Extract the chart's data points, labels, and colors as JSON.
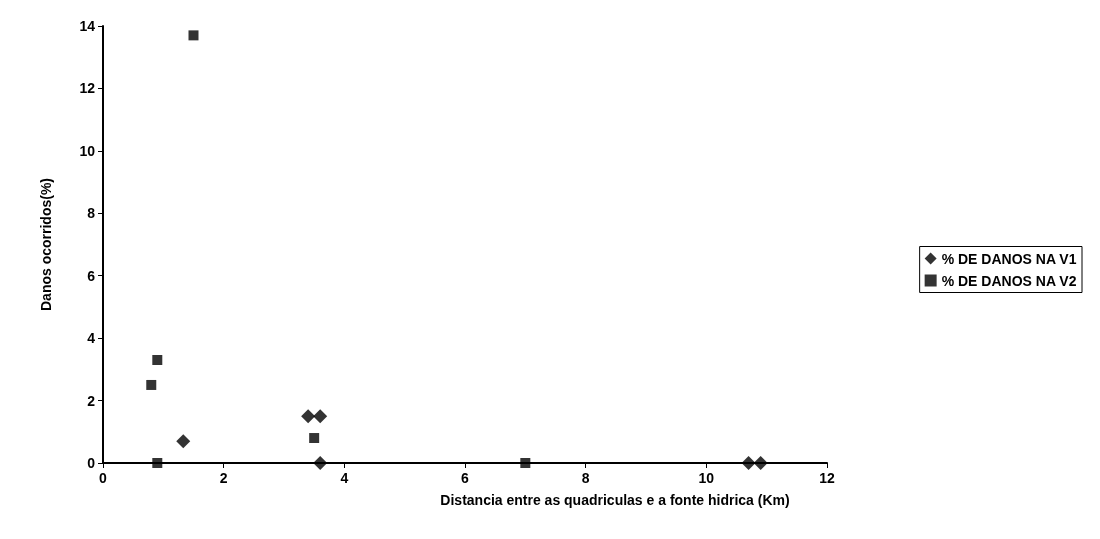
{
  "chart_data": {
    "type": "scatter",
    "xlabel": "Distancia entre as quadriculas e a fonte hidrica (Km)",
    "ylabel": "Danos ocorridos(%)",
    "xlim": [
      0,
      12
    ],
    "xticks": [
      0,
      2,
      4,
      6,
      8,
      10,
      12
    ],
    "ylim": [
      0,
      14
    ],
    "yticks": [
      0,
      2,
      4,
      6,
      8,
      10,
      12,
      14
    ],
    "grid": false,
    "legend": "right",
    "series": [
      {
        "name": "% DE DANOS NA V1",
        "color": "#000000",
        "marker": "diamond",
        "x": [
          1.33,
          3.4,
          3.6,
          3.6,
          10.7,
          10.9
        ],
        "values": [
          0.7,
          1.5,
          1.5,
          0,
          0,
          0
        ]
      },
      {
        "name": "% DE DANOS NA V2",
        "color": "#000000",
        "marker": "square",
        "x": [
          0.9,
          0.9,
          0.8,
          1.5,
          3.5,
          7
        ],
        "values": [
          0,
          3.3,
          2.5,
          13.7,
          0.8,
          0
        ]
      }
    ]
  }
}
